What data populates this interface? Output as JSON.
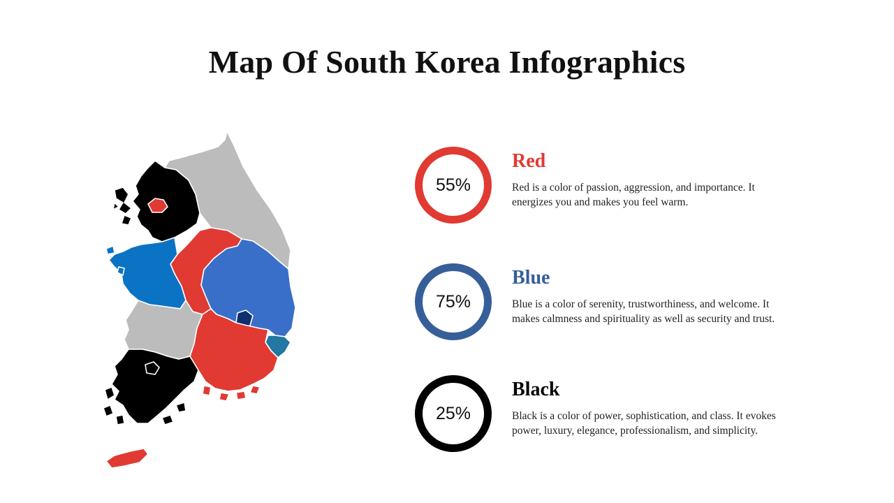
{
  "title": "Map Of South Korea Infographics",
  "colors": {
    "red": "#e03a33",
    "blue": "#365f9a",
    "black": "#000000",
    "gray": "#bcbcbc",
    "map_blue": "#3a6fc9",
    "map_blue_west": "#0b73c4",
    "map_teal": "#2277a3",
    "map_navy": "#0e2f70"
  },
  "items": [
    {
      "key": "red",
      "percent_label": "55%",
      "heading": "Red",
      "color": "#e03a33",
      "description": "Red is a color of passion, aggression, and importance. It energizes you and makes you feel warm."
    },
    {
      "key": "blue",
      "percent_label": "75%",
      "heading": "Blue",
      "color": "#365f9a",
      "description": "Blue is a color of serenity, trustworthiness, and welcome. It makes calmness and spirituality as well as security and trust."
    },
    {
      "key": "black",
      "percent_label": "25%",
      "heading": "Black",
      "color": "#000000",
      "description": "Black is a color of power, sophistication, and class. It evokes power, luxury, elegance, professionalism, and simplicity."
    }
  ]
}
